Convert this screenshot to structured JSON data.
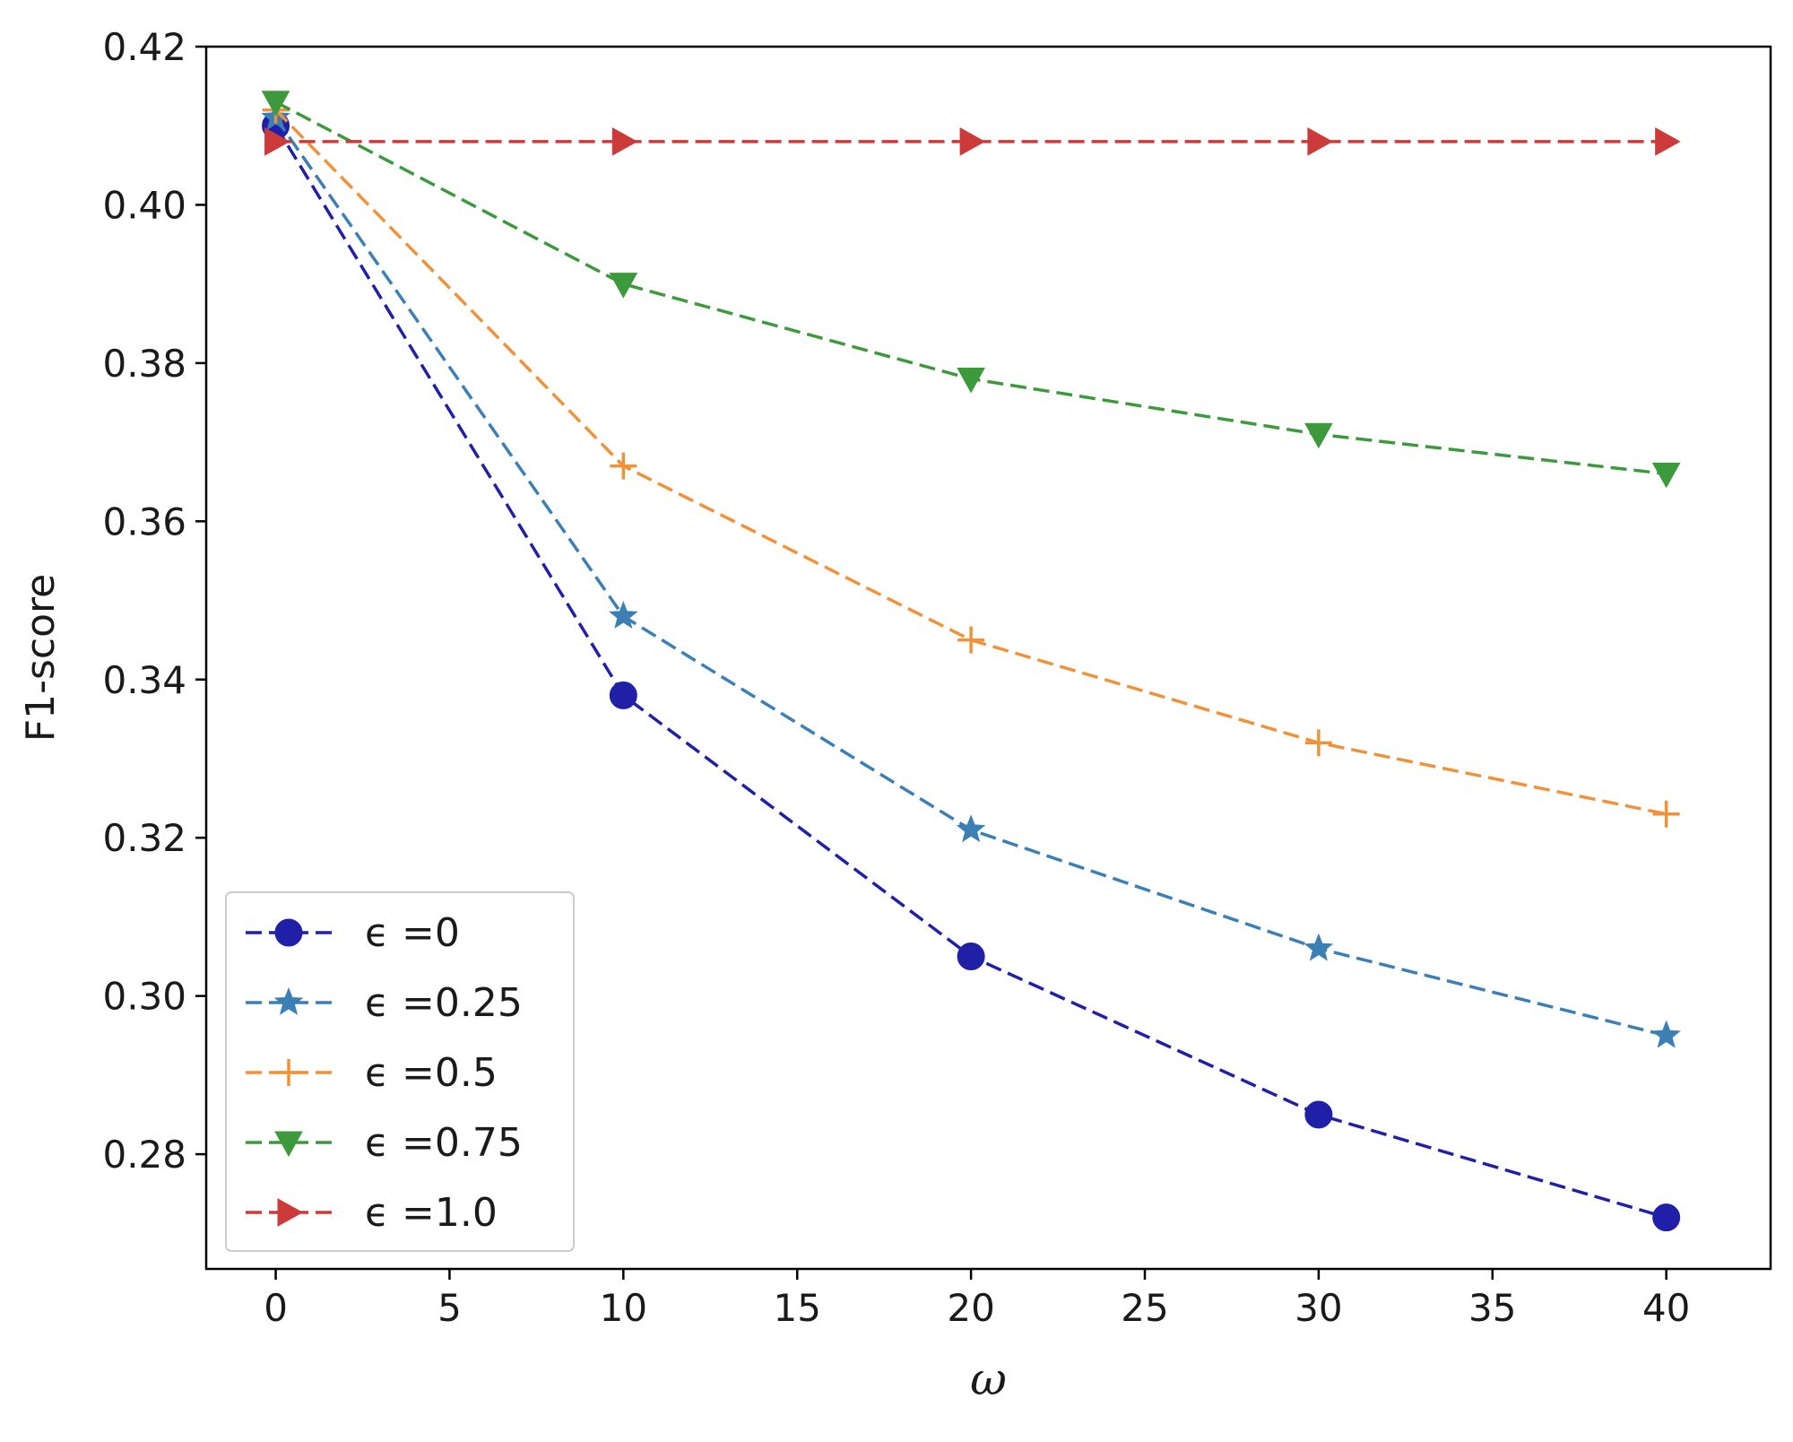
{
  "chart_data": {
    "type": "line",
    "xlabel": "ω",
    "ylabel": "F1-score",
    "xlim": [
      -2,
      43
    ],
    "ylim": [
      0.2655,
      0.42
    ],
    "xticks": [
      0,
      5,
      10,
      15,
      20,
      25,
      30,
      35,
      40
    ],
    "yticks": [
      0.28,
      0.3,
      0.32,
      0.34,
      0.36,
      0.38,
      0.4,
      0.42
    ],
    "ytick_labels": [
      "0.28",
      "0.30",
      "0.32",
      "0.34",
      "0.36",
      "0.38",
      "0.40",
      "0.42"
    ],
    "grid": false,
    "legend_position": "lower-left",
    "x": [
      0,
      10,
      20,
      30,
      40
    ],
    "series": [
      {
        "name": "ϵ =0",
        "color": "#1f1fa8",
        "marker": "circle",
        "values": [
          0.41,
          0.338,
          0.305,
          0.285,
          0.272
        ]
      },
      {
        "name": "ϵ =0.25",
        "color": "#3b7fb5",
        "marker": "star",
        "values": [
          0.411,
          0.348,
          0.321,
          0.306,
          0.295
        ]
      },
      {
        "name": "ϵ =0.5",
        "color": "#f0923a",
        "marker": "plus",
        "values": [
          0.412,
          0.367,
          0.345,
          0.332,
          0.323
        ]
      },
      {
        "name": "ϵ =0.75",
        "color": "#3c9a3c",
        "marker": "triangle-down",
        "values": [
          0.413,
          0.39,
          0.378,
          0.371,
          0.366
        ]
      },
      {
        "name": "ϵ =1.0",
        "color": "#cc3a3a",
        "marker": "triangle-right",
        "values": [
          0.408,
          0.408,
          0.408,
          0.408,
          0.408
        ]
      }
    ]
  }
}
